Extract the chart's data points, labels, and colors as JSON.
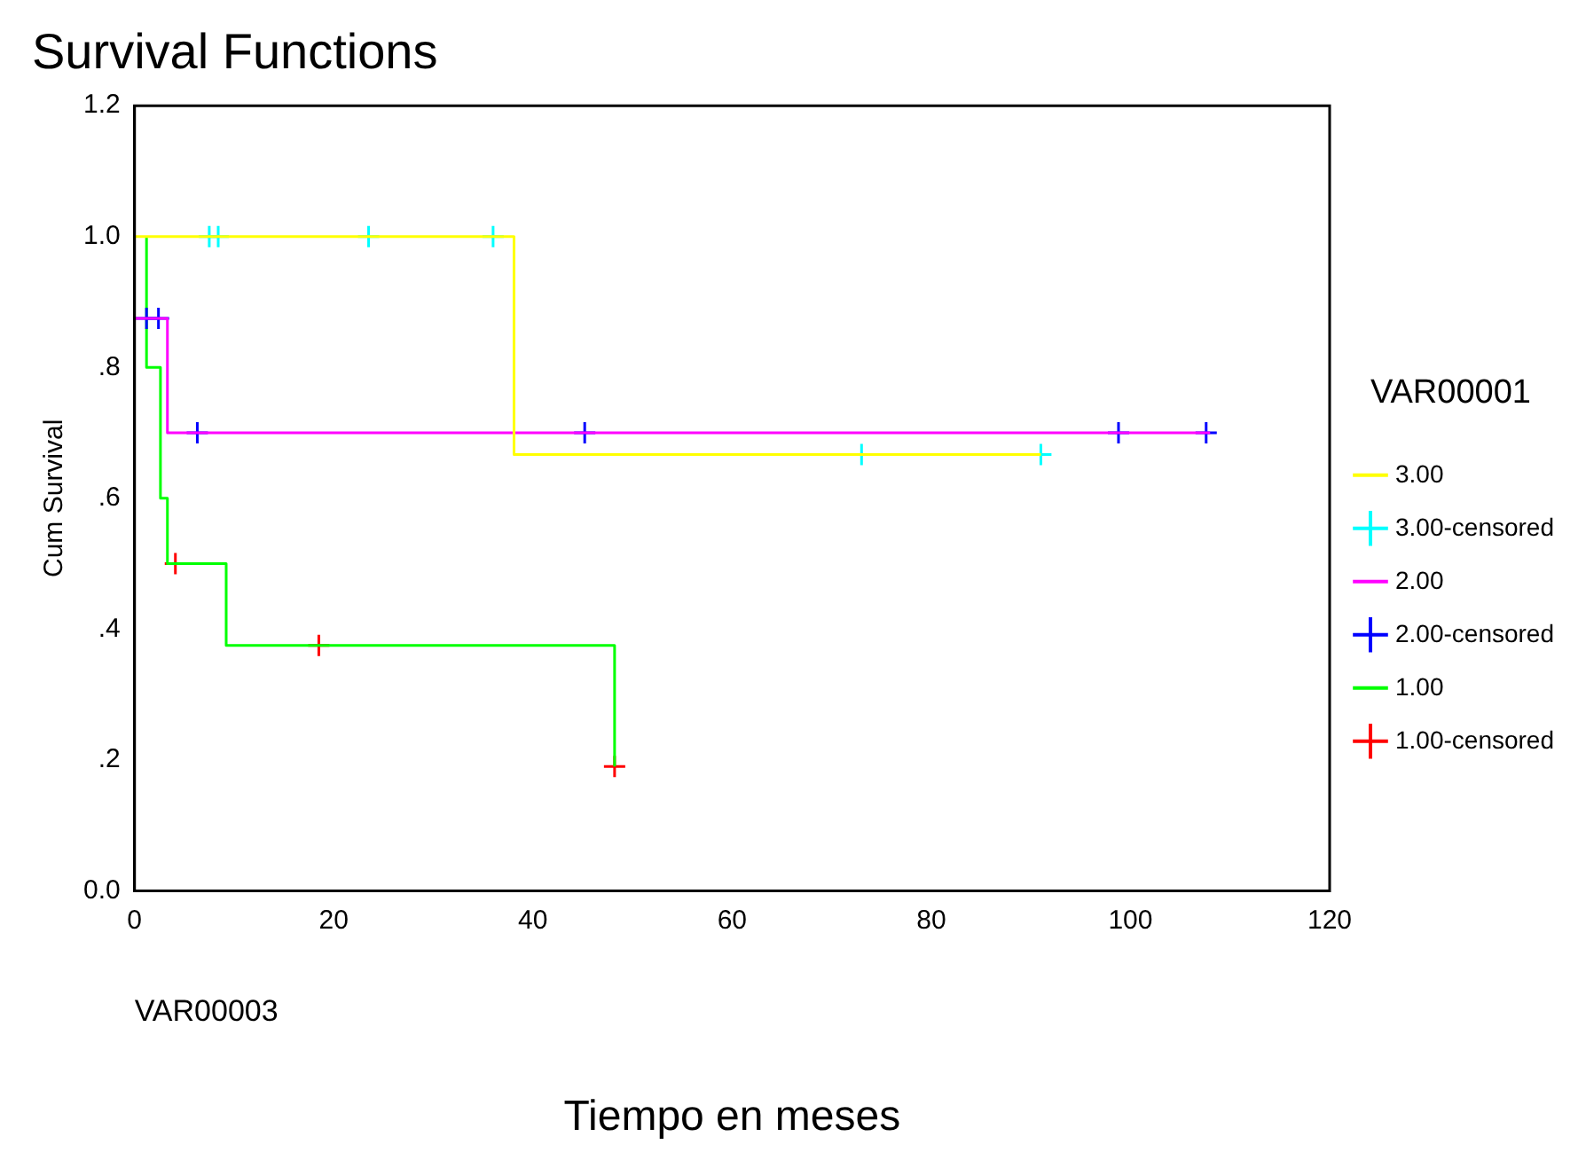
{
  "chart_data": {
    "type": "step",
    "title": "Survival Functions",
    "xlabel": "Tiempo en meses",
    "ylabel": "Cum Survival",
    "legend_title": "VAR00001",
    "annotations": [
      "VAR00003"
    ],
    "xlim": [
      0,
      120
    ],
    "xticks": [
      0,
      20,
      40,
      60,
      80,
      100,
      120
    ],
    "ylim": [
      0,
      1.2
    ],
    "yticks": [
      {
        "value": 0,
        "label": "0.0"
      },
      {
        "value": 0.2,
        "label": ".2"
      },
      {
        "value": 0.4,
        "label": ".4"
      },
      {
        "value": 0.6,
        "label": ".6"
      },
      {
        "value": 0.8,
        "label": ".8"
      },
      {
        "value": 1.0,
        "label": "1.0"
      },
      {
        "value": 1.2,
        "label": "1.2"
      }
    ],
    "grid": false,
    "legend": "right",
    "series": [
      {
        "name": "3.00",
        "type": "step",
        "color": "#ffff00",
        "marker": "none",
        "x": [
          0,
          38.1,
          91
        ],
        "values": [
          1.0,
          0.667,
          0.667
        ]
      },
      {
        "name": "3.00-censored",
        "type": "scatter",
        "color": "#00ffff",
        "marker": "cross",
        "x": [
          7.5,
          8.4,
          23.5,
          36,
          73,
          91
        ],
        "values": [
          1.0,
          1.0,
          1.0,
          1.0,
          0.667,
          0.667
        ]
      },
      {
        "name": "2.00",
        "type": "step",
        "color": "#ff00ff",
        "marker": "none",
        "x": [
          0,
          3.3,
          108
        ],
        "values": [
          0.875,
          0.7,
          0.7
        ]
      },
      {
        "name": "2.00-censored",
        "type": "scatter",
        "color": "#0000ff",
        "marker": "cross",
        "x": [
          1.2,
          2.4,
          6.3,
          45.2,
          98.8,
          107.6
        ],
        "values": [
          0.875,
          0.875,
          0.7,
          0.7,
          0.7,
          0.7
        ]
      },
      {
        "name": "1.00",
        "type": "step",
        "color": "#00ff00",
        "marker": "none",
        "x": [
          1.2,
          1.2,
          2.6,
          3.3,
          9.2,
          48.2
        ],
        "values": [
          1.0,
          0.8,
          0.6,
          0.5,
          0.375,
          0.19
        ]
      },
      {
        "name": "1.00-censored",
        "type": "scatter",
        "color": "#ff0000",
        "marker": "cross",
        "x": [
          4.1,
          18.5,
          48.2
        ],
        "values": [
          0.5,
          0.375,
          0.19
        ]
      }
    ]
  }
}
